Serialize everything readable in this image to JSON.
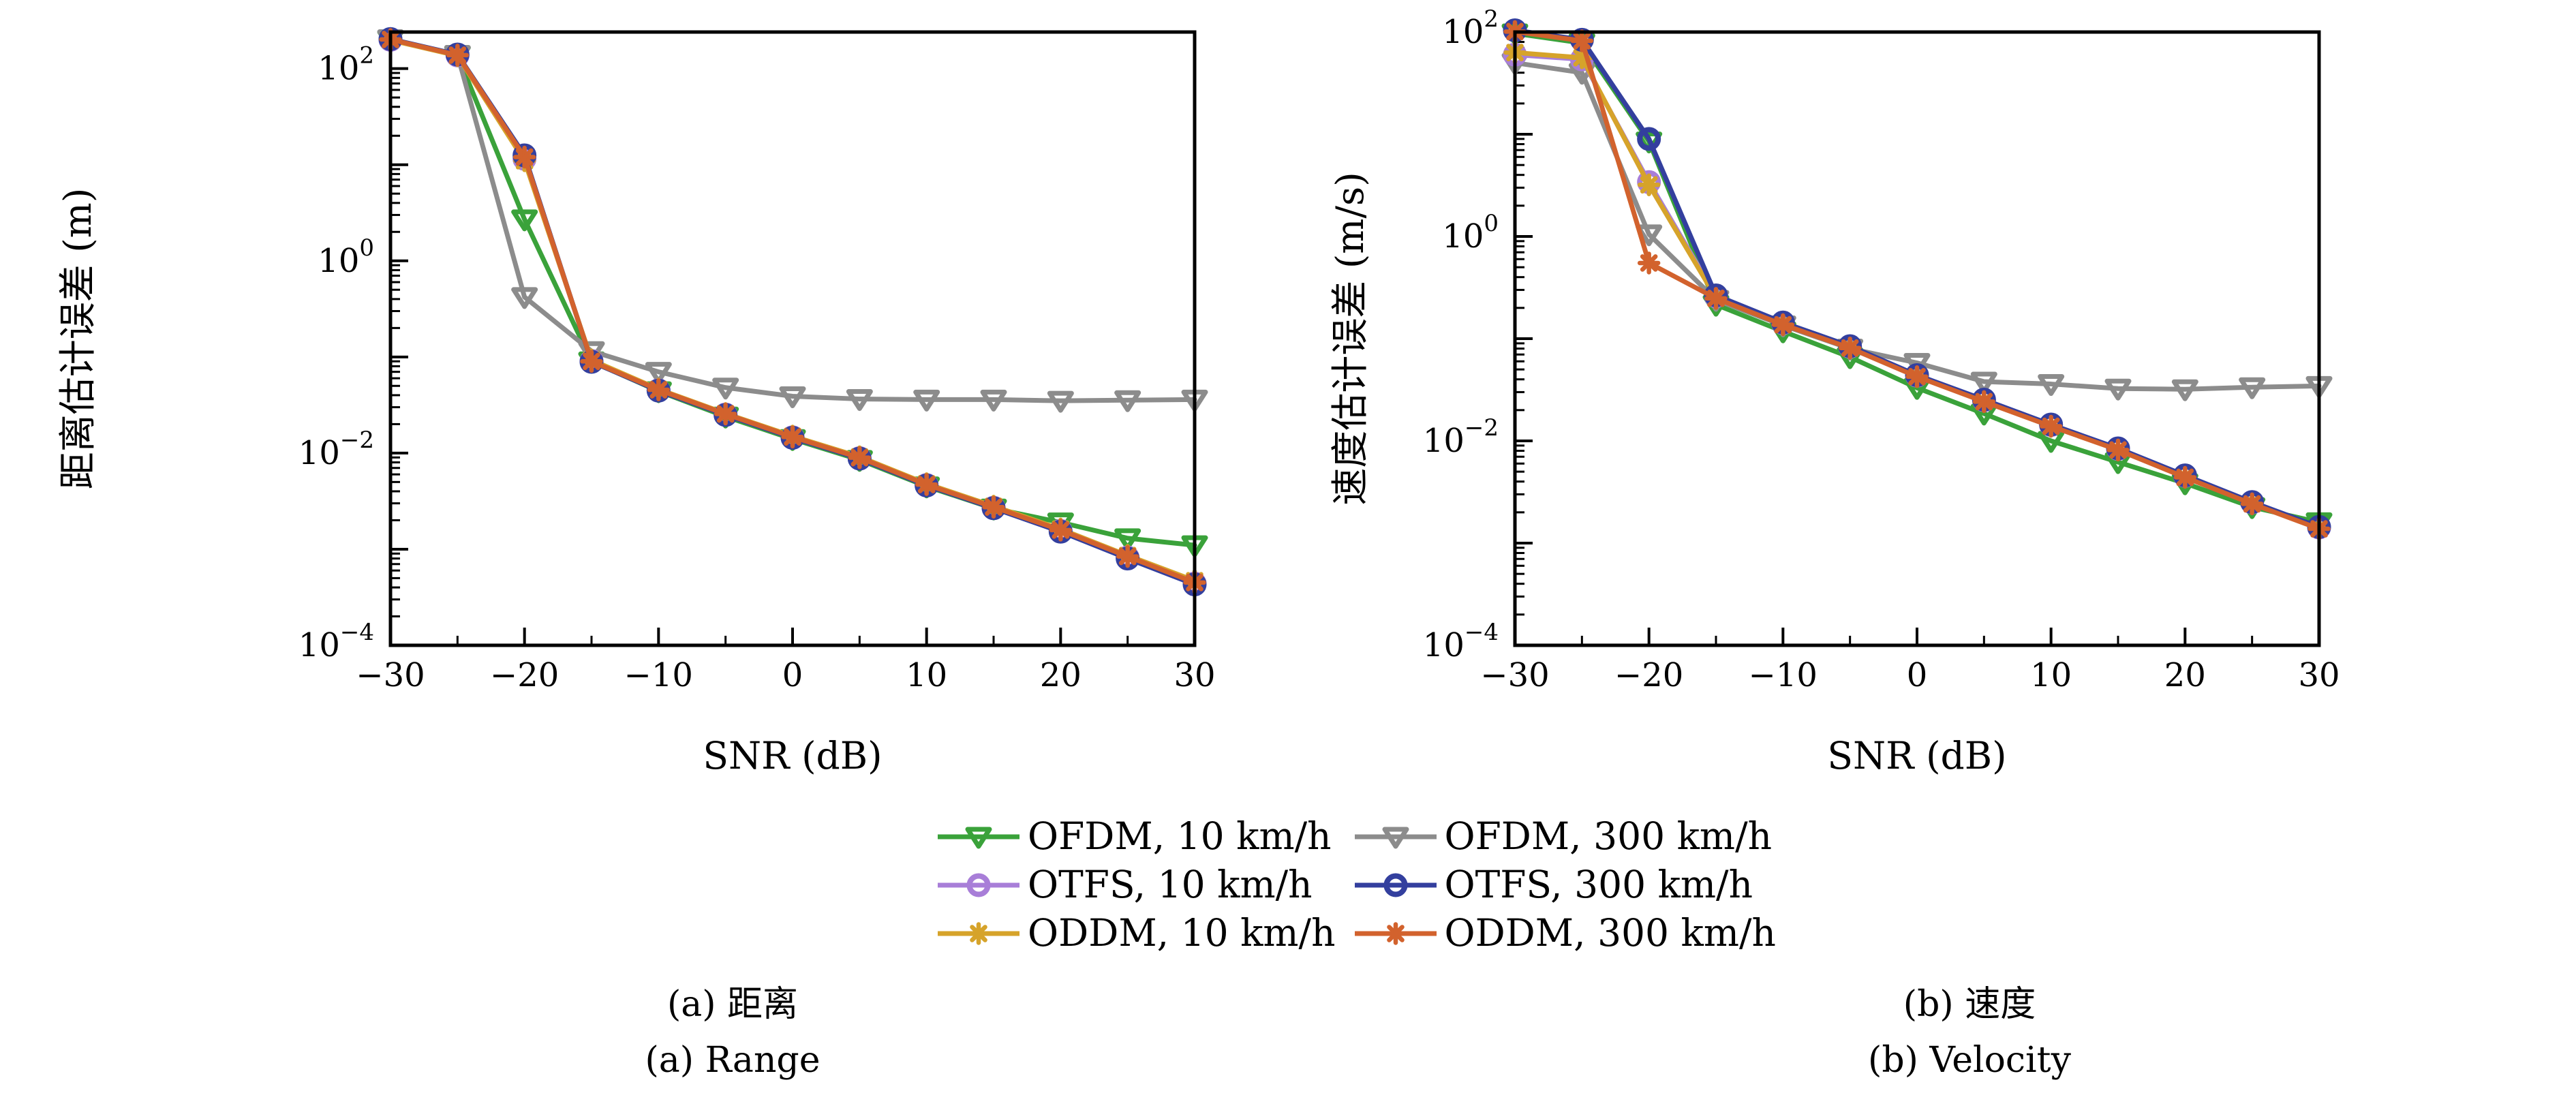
{
  "figure": {
    "background": "#ffffff",
    "series_styles": {
      "ofdm10": {
        "color": "#3aa23a",
        "marker": "triangle-down",
        "z": 1
      },
      "ofdm300": {
        "color": "#8c8c8c",
        "marker": "triangle-down",
        "z": 2
      },
      "otfs10": {
        "color": "#a87ed8",
        "marker": "circle",
        "z": 3
      },
      "oddm10": {
        "color": "#d6a32a",
        "marker": "asterisk",
        "z": 4
      },
      "otfs300": {
        "color": "#333f9e",
        "marker": "circle",
        "z": 5
      },
      "oddm300": {
        "color": "#d2622d",
        "marker": "asterisk",
        "z": 6
      }
    },
    "legend": {
      "position": "below-center",
      "entries": [
        {
          "key": "ofdm10",
          "label": "OFDM, 10 km/h"
        },
        {
          "key": "ofdm300",
          "label": "OFDM, 300 km/h"
        },
        {
          "key": "otfs10",
          "label": "OTFS, 10 km/h"
        },
        {
          "key": "otfs300",
          "label": "OTFS, 300 km/h"
        },
        {
          "key": "oddm10",
          "label": "ODDM, 10 km/h"
        },
        {
          "key": "oddm300",
          "label": "ODDM, 300 km/h"
        }
      ]
    }
  },
  "chart_data": [
    {
      "type": "line",
      "title": "",
      "xlabel": "SNR (dB)",
      "ylabel": "距离估计误差 (m)",
      "caption_zh": "(a) 距离",
      "caption_en": "(a) Range",
      "yscale": "log",
      "grid": false,
      "xlim": [
        -30,
        30
      ],
      "ylim": [
        0.0001,
        240
      ],
      "xticks": [
        -30,
        -20,
        -10,
        0,
        10,
        20,
        30
      ],
      "xtick_minor_step": 5,
      "ytick_exponents": [
        2,
        0,
        -2,
        -4
      ],
      "x": [
        -30,
        -25,
        -20,
        -15,
        -10,
        -5,
        0,
        5,
        10,
        15,
        20,
        25,
        30
      ],
      "series": [
        {
          "key": "ofdm10",
          "name": "OFDM, 10 km/h",
          "values": [
            200,
            138,
            2.7,
            0.09,
            0.044,
            0.024,
            0.014,
            0.0085,
            0.0045,
            0.00265,
            0.0019,
            0.0013,
            0.0011
          ]
        },
        {
          "key": "ofdm300",
          "name": "OFDM, 300 km/h",
          "values": [
            202,
            139,
            0.42,
            0.115,
            0.07,
            0.048,
            0.039,
            0.0365,
            0.036,
            0.036,
            0.035,
            0.0355,
            0.036
          ]
        },
        {
          "key": "otfs10",
          "name": "OTFS, 10 km/h",
          "values": [
            199,
            137,
            11.5,
            0.091,
            0.045,
            0.0252,
            0.0146,
            0.00885,
            0.00465,
            0.0027,
            0.00155,
            0.00082,
            0.00044
          ]
        },
        {
          "key": "oddm10",
          "name": "ODDM, 10 km/h",
          "values": [
            198,
            136,
            11.0,
            0.093,
            0.0462,
            0.0258,
            0.015,
            0.00915,
            0.0048,
            0.0028,
            0.00162,
            0.00086,
            0.00047
          ]
        },
        {
          "key": "otfs300",
          "name": "OTFS, 300 km/h",
          "values": [
            203,
            140,
            12.5,
            0.089,
            0.0446,
            0.0249,
            0.0144,
            0.00875,
            0.0046,
            0.00267,
            0.00152,
            0.0008,
            0.00043
          ]
        },
        {
          "key": "oddm300",
          "name": "ODDM, 300 km/h",
          "values": [
            201,
            138,
            12.0,
            0.09,
            0.0455,
            0.0255,
            0.0147,
            0.00895,
            0.0047,
            0.00274,
            0.00158,
            0.00084,
            0.00045
          ]
        }
      ]
    },
    {
      "type": "line",
      "title": "",
      "xlabel": "SNR (dB)",
      "ylabel": "速度估计误差 (m/s)",
      "caption_zh": "(b) 速度",
      "caption_en": "(b) Velocity",
      "yscale": "log",
      "grid": false,
      "xlim": [
        -30,
        30
      ],
      "ylim": [
        0.0001,
        100
      ],
      "xticks": [
        -30,
        -20,
        -10,
        0,
        10,
        20,
        30
      ],
      "xtick_minor_step": 5,
      "ytick_exponents": [
        2,
        0,
        -2,
        -4
      ],
      "x": [
        -30,
        -25,
        -20,
        -15,
        -10,
        -5,
        0,
        5,
        10,
        15,
        20,
        25,
        30
      ],
      "series": [
        {
          "key": "ofdm10",
          "name": "OFDM, 10 km/h",
          "values": [
            97,
            78,
            8.5,
            0.215,
            0.118,
            0.066,
            0.033,
            0.0185,
            0.01,
            0.0062,
            0.00385,
            0.00225,
            0.0016
          ]
        },
        {
          "key": "ofdm300",
          "name": "OFDM, 300 km/h",
          "values": [
            50,
            40,
            1.05,
            0.24,
            0.135,
            0.08,
            0.058,
            0.038,
            0.036,
            0.0325,
            0.032,
            0.0335,
            0.0345
          ]
        },
        {
          "key": "otfs10",
          "name": "OTFS, 10 km/h",
          "values": [
            60,
            54,
            3.4,
            0.26,
            0.142,
            0.0835,
            0.0435,
            0.025,
            0.0143,
            0.00835,
            0.00455,
            0.0025,
            0.00142
          ]
        },
        {
          "key": "oddm10",
          "name": "ODDM, 10 km/h",
          "values": [
            63,
            56,
            3.2,
            0.252,
            0.139,
            0.082,
            0.0428,
            0.0245,
            0.014,
            0.0082,
            0.00445,
            0.00245,
            0.0014
          ]
        },
        {
          "key": "otfs300",
          "name": "OTFS, 300 km/h",
          "values": [
            104,
            84,
            9.0,
            0.265,
            0.144,
            0.0845,
            0.044,
            0.0253,
            0.01445,
            0.00845,
            0.0046,
            0.00252,
            0.00144
          ]
        },
        {
          "key": "oddm300",
          "name": "ODDM, 300 km/h",
          "values": [
            101,
            82,
            0.55,
            0.248,
            0.137,
            0.081,
            0.0425,
            0.0242,
            0.0139,
            0.00815,
            0.0044,
            0.00242,
            0.00138
          ]
        }
      ]
    }
  ]
}
